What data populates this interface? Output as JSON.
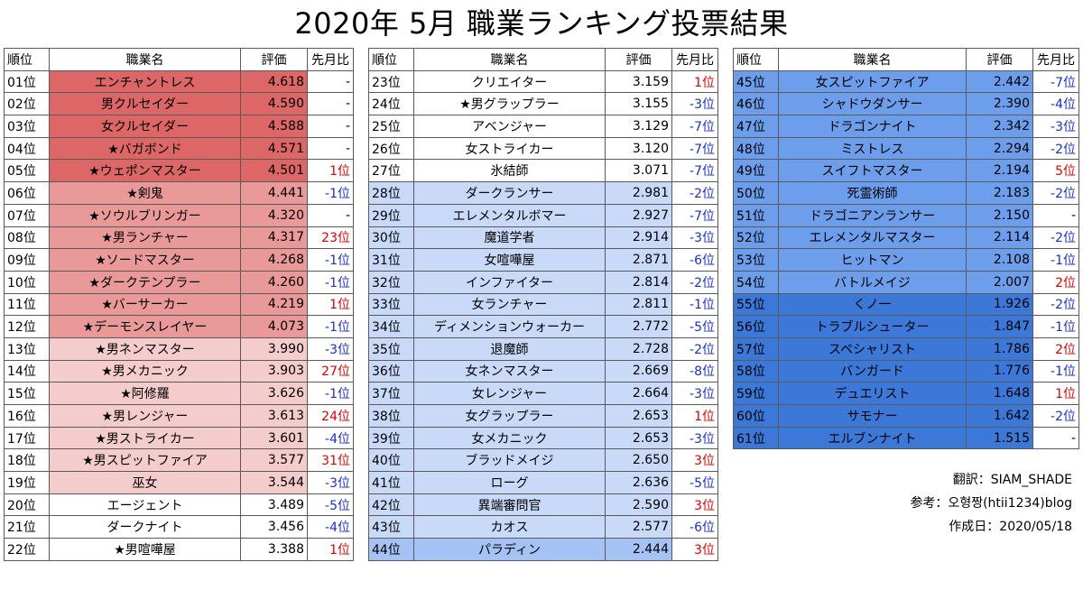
{
  "title": "2020年 5月 職業ランキング投票結果",
  "headers": {
    "rank": "順位",
    "job": "職業名",
    "score": "評価",
    "change": "先月比"
  },
  "tiers": [
    {
      "rank_bg": "#ffffff",
      "cell_bg": "#dd6666"
    },
    {
      "rank_bg": "#ffffff",
      "cell_bg": "#ea9999"
    },
    {
      "rank_bg": "#ffffff",
      "cell_bg": "#f4cccc"
    },
    {
      "rank_bg": "#ffffff",
      "cell_bg": "#ffffff"
    },
    {
      "rank_bg": "#ffffff",
      "cell_bg": "#ffffff"
    },
    {
      "rank_bg": "#c9daf8",
      "cell_bg": "#c9daf8"
    },
    {
      "rank_bg": "#a4c2f4",
      "cell_bg": "#a4c2f4"
    },
    {
      "rank_bg": "#6d9eeb",
      "cell_bg": "#6d9eeb"
    },
    {
      "rank_bg": "#3c78d8",
      "cell_bg": "#3c78d8"
    }
  ],
  "columns": [
    [
      {
        "rank": "01位",
        "job": "エンチャントレス",
        "score": "4.618",
        "change": "-",
        "tier": 0
      },
      {
        "rank": "02位",
        "job": "男クルセイダー",
        "score": "4.590",
        "change": "-",
        "tier": 0
      },
      {
        "rank": "03位",
        "job": "女クルセイダー",
        "score": "4.588",
        "change": "-",
        "tier": 0
      },
      {
        "rank": "04位",
        "job": "★バガボンド",
        "score": "4.571",
        "change": "-",
        "tier": 0
      },
      {
        "rank": "05位",
        "job": "★ウェポンマスター",
        "score": "4.501",
        "change": "1位",
        "tier": 0
      },
      {
        "rank": "06位",
        "job": "★剣鬼",
        "score": "4.441",
        "change": "-1位",
        "tier": 1
      },
      {
        "rank": "07位",
        "job": "★ソウルブリンガー",
        "score": "4.320",
        "change": "-",
        "tier": 1
      },
      {
        "rank": "08位",
        "job": "★男ランチャー",
        "score": "4.317",
        "change": "23位",
        "tier": 1
      },
      {
        "rank": "09位",
        "job": "★ソードマスター",
        "score": "4.268",
        "change": "-1位",
        "tier": 1
      },
      {
        "rank": "10位",
        "job": "★ダークテンプラー",
        "score": "4.260",
        "change": "-1位",
        "tier": 1
      },
      {
        "rank": "11位",
        "job": "★バーサーカー",
        "score": "4.219",
        "change": "1位",
        "tier": 1
      },
      {
        "rank": "12位",
        "job": "★デーモンスレイヤー",
        "score": "4.073",
        "change": "-1位",
        "tier": 1
      },
      {
        "rank": "13位",
        "job": "★男ネンマスター",
        "score": "3.990",
        "change": "-3位",
        "tier": 2
      },
      {
        "rank": "14位",
        "job": "★男メカニック",
        "score": "3.903",
        "change": "27位",
        "tier": 2
      },
      {
        "rank": "15位",
        "job": "★阿修羅",
        "score": "3.626",
        "change": "-1位",
        "tier": 2
      },
      {
        "rank": "16位",
        "job": "★男レンジャー",
        "score": "3.613",
        "change": "24位",
        "tier": 2
      },
      {
        "rank": "17位",
        "job": "★男ストライカー",
        "score": "3.601",
        "change": "-4位",
        "tier": 2
      },
      {
        "rank": "18位",
        "job": "★男スピットファイア",
        "score": "3.577",
        "change": "31位",
        "tier": 2
      },
      {
        "rank": "19位",
        "job": "巫女",
        "score": "3.544",
        "change": "-3位",
        "tier": 2
      },
      {
        "rank": "20位",
        "job": "エージェント",
        "score": "3.489",
        "change": "-5位",
        "tier": 3
      },
      {
        "rank": "21位",
        "job": "ダークナイト",
        "score": "3.456",
        "change": "-4位",
        "tier": 3
      },
      {
        "rank": "22位",
        "job": "★男喧嘩屋",
        "score": "3.388",
        "change": "1位",
        "tier": 3
      }
    ],
    [
      {
        "rank": "23位",
        "job": "クリエイター",
        "score": "3.159",
        "change": "1位",
        "tier": 4
      },
      {
        "rank": "24位",
        "job": "★男グラップラー",
        "score": "3.155",
        "change": "-3位",
        "tier": 4
      },
      {
        "rank": "25位",
        "job": "アベンジャー",
        "score": "3.129",
        "change": "-7位",
        "tier": 4
      },
      {
        "rank": "26位",
        "job": "女ストライカー",
        "score": "3.120",
        "change": "-7位",
        "tier": 4
      },
      {
        "rank": "27位",
        "job": "氷結師",
        "score": "3.071",
        "change": "-7位",
        "tier": 4
      },
      {
        "rank": "28位",
        "job": "ダークランサー",
        "score": "2.981",
        "change": "-2位",
        "tier": 5
      },
      {
        "rank": "29位",
        "job": "エレメンタルボマー",
        "score": "2.927",
        "change": "-7位",
        "tier": 5
      },
      {
        "rank": "30位",
        "job": "魔道学者",
        "score": "2.914",
        "change": "-3位",
        "tier": 5
      },
      {
        "rank": "31位",
        "job": "女喧嘩屋",
        "score": "2.871",
        "change": "-6位",
        "tier": 5
      },
      {
        "rank": "32位",
        "job": "インファイター",
        "score": "2.814",
        "change": "-2位",
        "tier": 5
      },
      {
        "rank": "33位",
        "job": "女ランチャー",
        "score": "2.811",
        "change": "-1位",
        "tier": 5
      },
      {
        "rank": "34位",
        "job": "ディメンションウォーカー",
        "score": "2.772",
        "change": "-5位",
        "tier": 5
      },
      {
        "rank": "35位",
        "job": "退魔師",
        "score": "2.728",
        "change": "-2位",
        "tier": 5
      },
      {
        "rank": "36位",
        "job": "女ネンマスター",
        "score": "2.669",
        "change": "-8位",
        "tier": 5
      },
      {
        "rank": "37位",
        "job": "女レンジャー",
        "score": "2.664",
        "change": "-3位",
        "tier": 5
      },
      {
        "rank": "38位",
        "job": "女グラップラー",
        "score": "2.653",
        "change": "1位",
        "tier": 5
      },
      {
        "rank": "39位",
        "job": "女メカニック",
        "score": "2.653",
        "change": "-3位",
        "tier": 5
      },
      {
        "rank": "40位",
        "job": "ブラッドメイジ",
        "score": "2.650",
        "change": "3位",
        "tier": 5
      },
      {
        "rank": "41位",
        "job": "ローグ",
        "score": "2.636",
        "change": "-5位",
        "tier": 5
      },
      {
        "rank": "42位",
        "job": "異端審問官",
        "score": "2.590",
        "change": "3位",
        "tier": 5
      },
      {
        "rank": "43位",
        "job": "カオス",
        "score": "2.577",
        "change": "-6位",
        "tier": 5
      },
      {
        "rank": "44位",
        "job": "パラディン",
        "score": "2.444",
        "change": "3位",
        "tier": 6
      }
    ],
    [
      {
        "rank": "45位",
        "job": "女スピットファイア",
        "score": "2.442",
        "change": "-7位",
        "tier": 7
      },
      {
        "rank": "46位",
        "job": "シャドウダンサー",
        "score": "2.390",
        "change": "-4位",
        "tier": 7
      },
      {
        "rank": "47位",
        "job": "ドラゴンナイト",
        "score": "2.342",
        "change": "-3位",
        "tier": 7
      },
      {
        "rank": "48位",
        "job": "ミストレス",
        "score": "2.294",
        "change": "-2位",
        "tier": 7
      },
      {
        "rank": "49位",
        "job": "スイフトマスター",
        "score": "2.194",
        "change": "5位",
        "tier": 7
      },
      {
        "rank": "50位",
        "job": "死霊術師",
        "score": "2.183",
        "change": "-2位",
        "tier": 7
      },
      {
        "rank": "51位",
        "job": "ドラゴニアンランサー",
        "score": "2.150",
        "change": "-",
        "tier": 7
      },
      {
        "rank": "52位",
        "job": "エレメンタルマスター",
        "score": "2.114",
        "change": "-2位",
        "tier": 7
      },
      {
        "rank": "53位",
        "job": "ヒットマン",
        "score": "2.108",
        "change": "-1位",
        "tier": 7
      },
      {
        "rank": "54位",
        "job": "バトルメイジ",
        "score": "2.007",
        "change": "2位",
        "tier": 7
      },
      {
        "rank": "55位",
        "job": "くノ一",
        "score": "1.926",
        "change": "-2位",
        "tier": 8
      },
      {
        "rank": "56位",
        "job": "トラブルシューター",
        "score": "1.847",
        "change": "-1位",
        "tier": 8
      },
      {
        "rank": "57位",
        "job": "スペシャリスト",
        "score": "1.786",
        "change": "2位",
        "tier": 8
      },
      {
        "rank": "58位",
        "job": "バンガード",
        "score": "1.776",
        "change": "-1位",
        "tier": 8
      },
      {
        "rank": "59位",
        "job": "デュエリスト",
        "score": "1.648",
        "change": "1位",
        "tier": 8
      },
      {
        "rank": "60位",
        "job": "サモナー",
        "score": "1.642",
        "change": "-2位",
        "tier": 8
      },
      {
        "rank": "61位",
        "job": "エルブンナイト",
        "score": "1.515",
        "change": "-",
        "tier": 8
      }
    ]
  ],
  "credits": {
    "translation": "翻訳：SIAM_SHADE",
    "reference": "参考：오형짱(htii1234)blog",
    "created": "作成日：2020/05/18"
  },
  "colors": {
    "up": "#e00000",
    "down": "#1a2fd0",
    "border": "#5a5a5a"
  }
}
